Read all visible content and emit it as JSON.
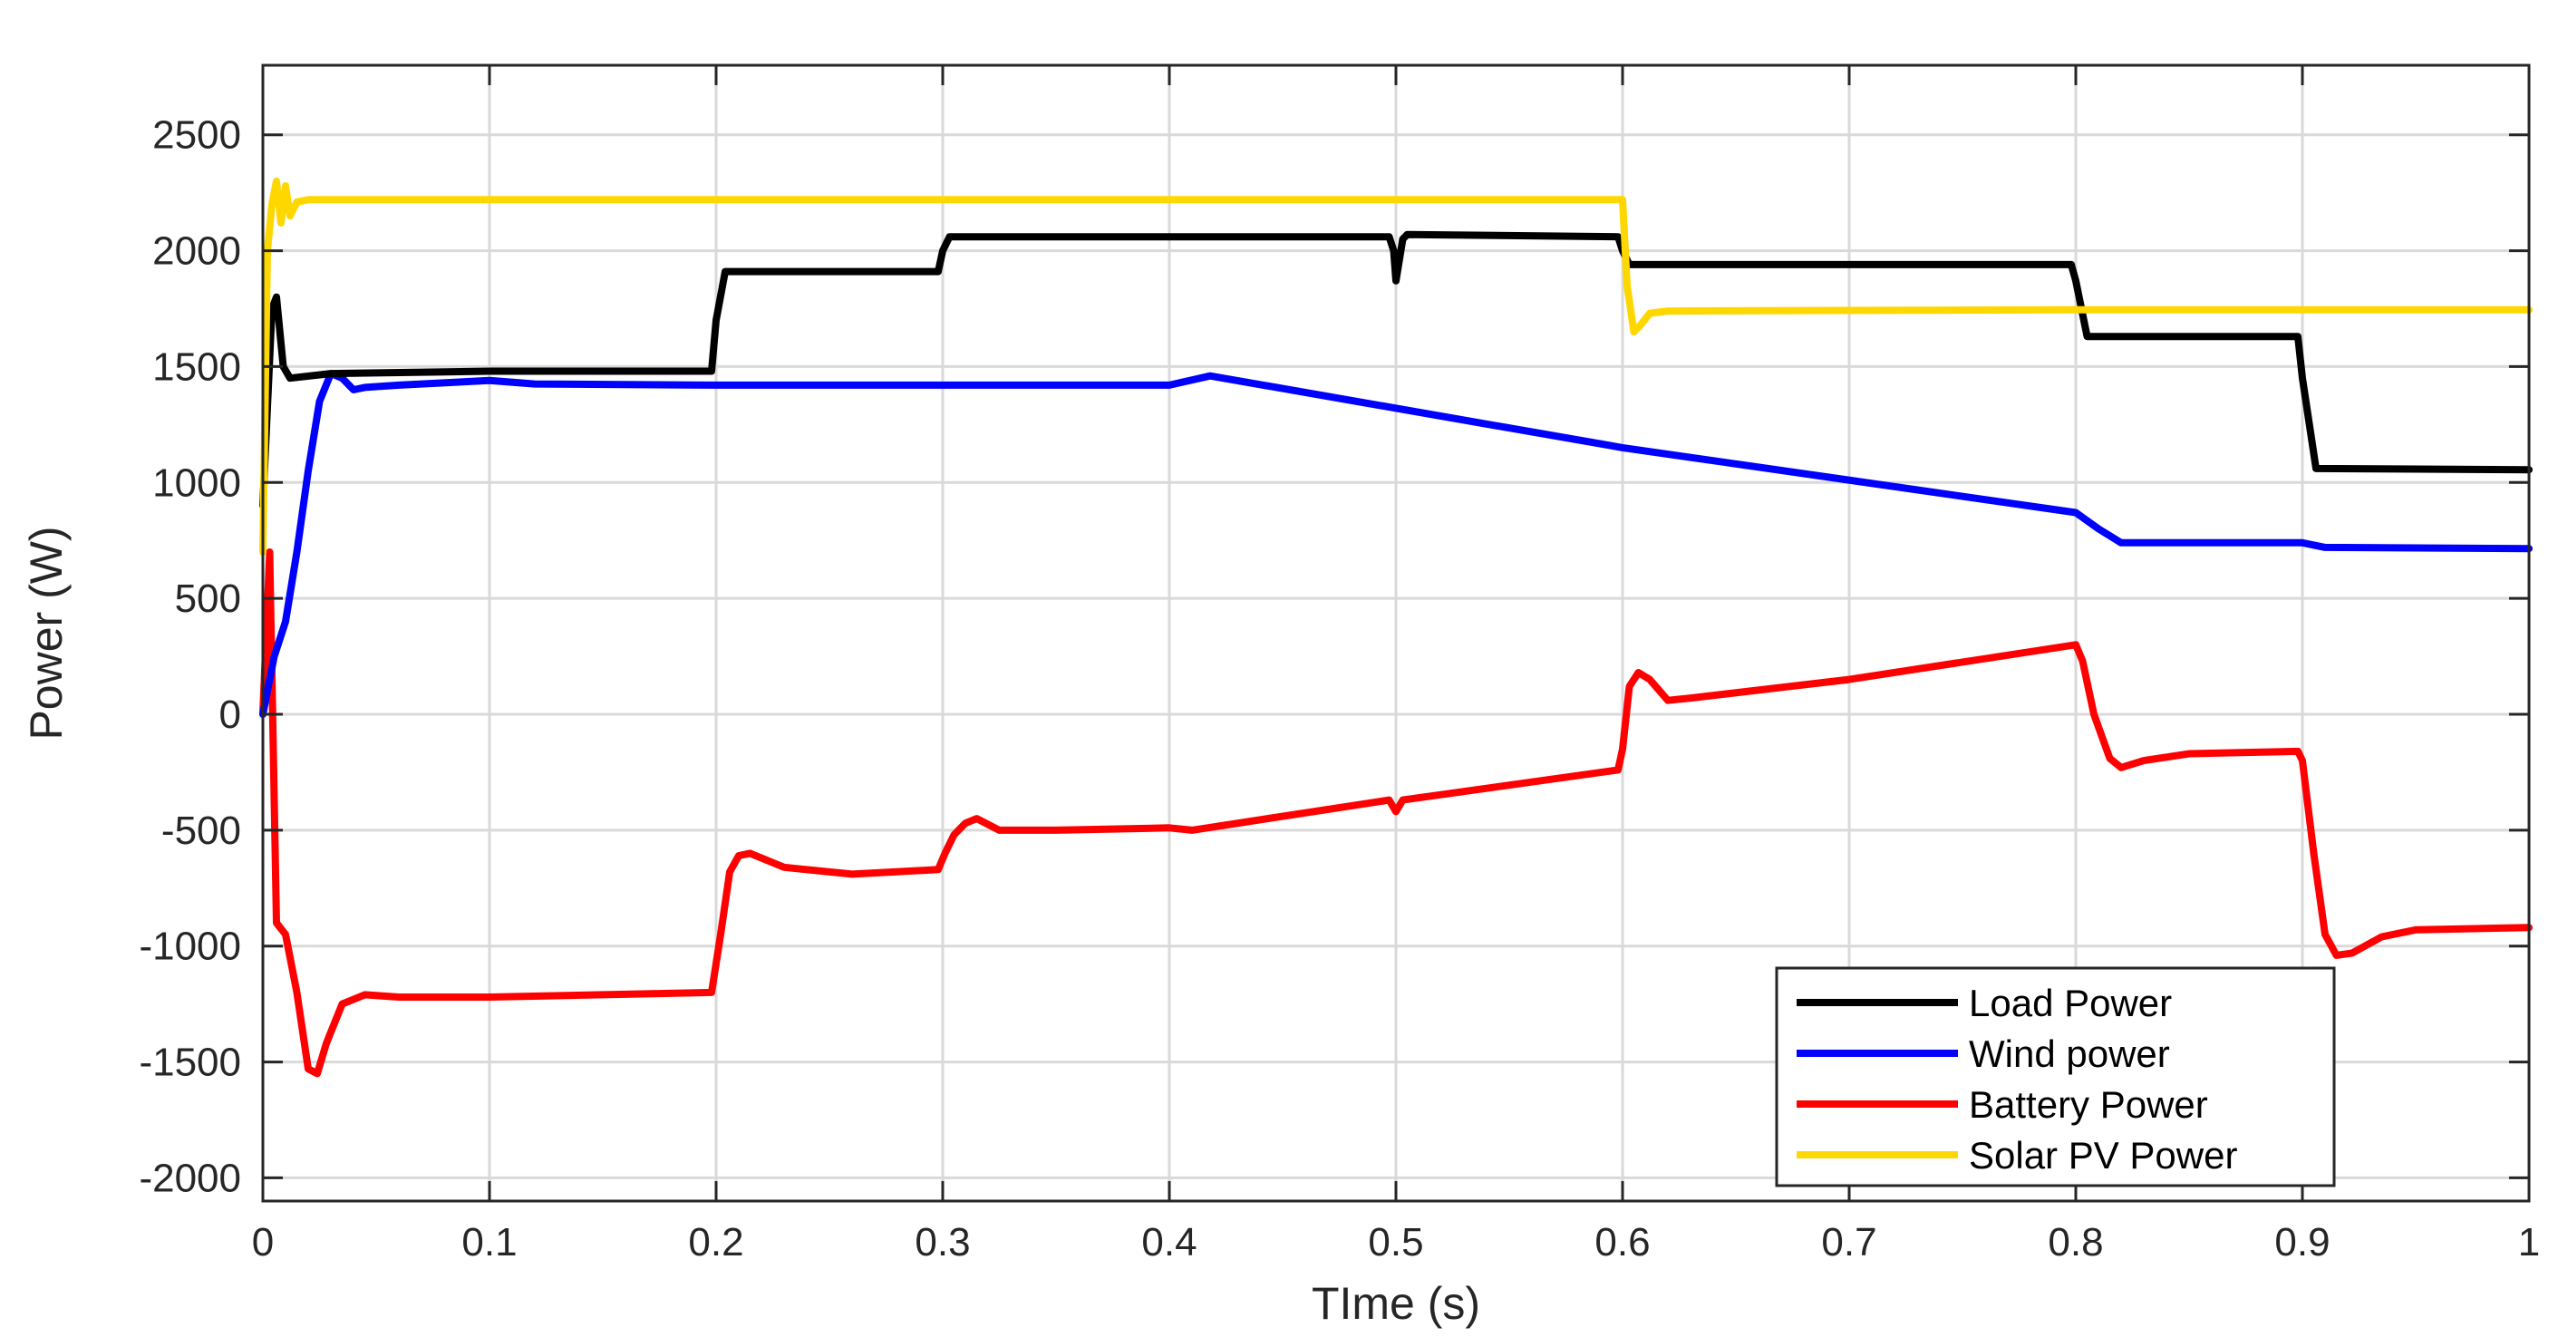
{
  "chart_data": {
    "type": "line",
    "title": "",
    "xlabel": "TIme (s)",
    "ylabel": "Power (W)",
    "xlim": [
      0,
      1
    ],
    "ylim": [
      -2100,
      2800
    ],
    "grid": true,
    "legend_position": "bottom-right",
    "xticks": [
      0,
      0.1,
      0.2,
      0.3,
      0.4,
      0.5,
      0.6,
      0.7,
      0.8,
      0.9,
      1
    ],
    "xtick_labels": [
      "0",
      "0.1",
      "0.2",
      "0.3",
      "0.4",
      "0.5",
      "0.6",
      "0.7",
      "0.8",
      "0.9",
      "1"
    ],
    "yticks": [
      -2000,
      -1500,
      -1000,
      -500,
      0,
      500,
      1000,
      1500,
      2000,
      2500
    ],
    "ytick_labels": [
      "-2000",
      "-1500",
      "-1000",
      "-500",
      "0",
      "500",
      "1000",
      "1500",
      "2000",
      "2500"
    ],
    "series": [
      {
        "name": "Load Power",
        "color": "#000000",
        "x": [
          0,
          0.004,
          0.006,
          0.009,
          0.012,
          0.03,
          0.1,
          0.198,
          0.2,
          0.204,
          0.298,
          0.3,
          0.303,
          0.497,
          0.499,
          0.5,
          0.503,
          0.505,
          0.598,
          0.6,
          0.603,
          0.798,
          0.8,
          0.805,
          0.898,
          0.9,
          0.906,
          1.0
        ],
        "y": [
          900,
          1750,
          1800,
          1500,
          1450,
          1470,
          1480,
          1480,
          1700,
          1910,
          1910,
          2000,
          2060,
          2060,
          2000,
          1870,
          2050,
          2070,
          2060,
          2000,
          1940,
          1940,
          1870,
          1630,
          1630,
          1450,
          1060,
          1055
        ]
      },
      {
        "name": "Wind power",
        "color": "#0000ff",
        "x": [
          0,
          0.005,
          0.01,
          0.015,
          0.02,
          0.025,
          0.03,
          0.035,
          0.04,
          0.045,
          0.06,
          0.1,
          0.12,
          0.2,
          0.4,
          0.418,
          0.6,
          0.8,
          0.81,
          0.82,
          0.9,
          0.91,
          1.0
        ],
        "y": [
          0,
          250,
          400,
          700,
          1050,
          1350,
          1470,
          1450,
          1400,
          1410,
          1420,
          1440,
          1425,
          1420,
          1420,
          1460,
          1150,
          870,
          800,
          740,
          740,
          720,
          715
        ]
      },
      {
        "name": "Battery Power",
        "color": "#ff0000",
        "x": [
          0,
          0.003,
          0.006,
          0.01,
          0.015,
          0.02,
          0.024,
          0.028,
          0.035,
          0.045,
          0.06,
          0.1,
          0.198,
          0.202,
          0.206,
          0.21,
          0.215,
          0.23,
          0.26,
          0.298,
          0.301,
          0.305,
          0.31,
          0.315,
          0.325,
          0.35,
          0.4,
          0.41,
          0.497,
          0.5,
          0.503,
          0.598,
          0.6,
          0.603,
          0.607,
          0.612,
          0.62,
          0.63,
          0.7,
          0.8,
          0.803,
          0.808,
          0.815,
          0.82,
          0.83,
          0.85,
          0.898,
          0.9,
          0.905,
          0.91,
          0.915,
          0.922,
          0.935,
          0.95,
          1.0
        ],
        "y": [
          0,
          700,
          -900,
          -950,
          -1200,
          -1530,
          -1550,
          -1420,
          -1250,
          -1210,
          -1220,
          -1220,
          -1200,
          -950,
          -680,
          -610,
          -600,
          -660,
          -690,
          -670,
          -600,
          -520,
          -470,
          -450,
          -500,
          -500,
          -490,
          -500,
          -370,
          -420,
          -370,
          -240,
          -150,
          120,
          180,
          150,
          60,
          70,
          150,
          300,
          230,
          0,
          -190,
          -230,
          -200,
          -170,
          -160,
          -200,
          -600,
          -950,
          -1040,
          -1030,
          -960,
          -930,
          -920
        ]
      },
      {
        "name": "Solar PV Power",
        "color": "#ffd700",
        "x": [
          0,
          0.002,
          0.004,
          0.006,
          0.008,
          0.01,
          0.012,
          0.015,
          0.02,
          0.3,
          0.6,
          0.602,
          0.605,
          0.608,
          0.612,
          0.62,
          0.8,
          1.0
        ],
        "y": [
          700,
          2000,
          2200,
          2300,
          2120,
          2280,
          2150,
          2210,
          2220,
          2220,
          2220,
          1850,
          1650,
          1680,
          1730,
          1740,
          1745,
          1745
        ]
      }
    ]
  }
}
